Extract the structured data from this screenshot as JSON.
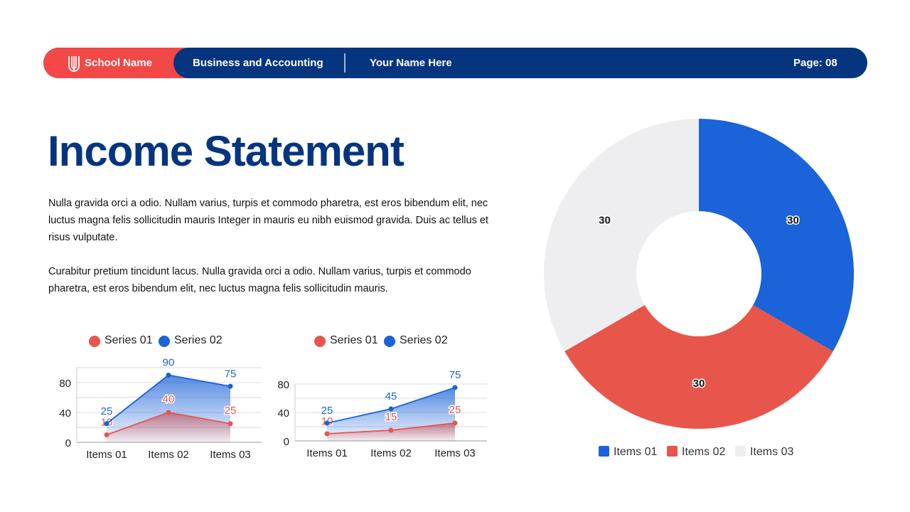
{
  "header": {
    "school": "School Name",
    "course": "Business and Accounting",
    "name": "Your Name Here",
    "page": "Page: 08"
  },
  "title": "Income Statement",
  "paragraphs": [
    "Nulla gravida orci a odio. Nullam varius, turpis et commodo pharetra, est eros bibendum elit, nec luctus magna felis sollicitudin mauris Integer in mauris eu nibh euismod gravida. Duis ac tellus et risus vulputate.",
    "Curabitur pretium tincidunt lacus. Nulla gravida orci a odio. Nullam varius, turpis et commodo pharetra, est eros bibendum elit, nec luctus magna felis sollicitudin mauris."
  ],
  "colors": {
    "series01": "#e8554a",
    "series02": "#1a63d8",
    "items03": "#eeeef0",
    "navy": "#05357f",
    "red": "#f24848"
  },
  "chart_data": [
    {
      "type": "area",
      "categories": [
        "Items 01",
        "Items 02",
        "Items 03"
      ],
      "series": [
        {
          "name": "Series 01",
          "values": [
            10,
            40,
            25
          ]
        },
        {
          "name": "Series 02",
          "values": [
            25,
            90,
            75
          ]
        }
      ],
      "ylim": [
        0,
        100
      ],
      "yticks": [
        0,
        40,
        80
      ],
      "grid": true,
      "legend": "top"
    },
    {
      "type": "area",
      "categories": [
        "Items 01",
        "Items 02",
        "Items 03"
      ],
      "series": [
        {
          "name": "Series 01",
          "values": [
            10,
            15,
            25
          ]
        },
        {
          "name": "Series 02",
          "values": [
            25,
            45,
            75
          ]
        }
      ],
      "ylim": [
        0,
        80
      ],
      "yticks": [
        0,
        40,
        80
      ],
      "grid": true,
      "legend": "top"
    },
    {
      "type": "donut",
      "categories": [
        "Items 01",
        "Items 02",
        "Items 03"
      ],
      "values": [
        30,
        30,
        30
      ],
      "legend": "bottom"
    }
  ]
}
